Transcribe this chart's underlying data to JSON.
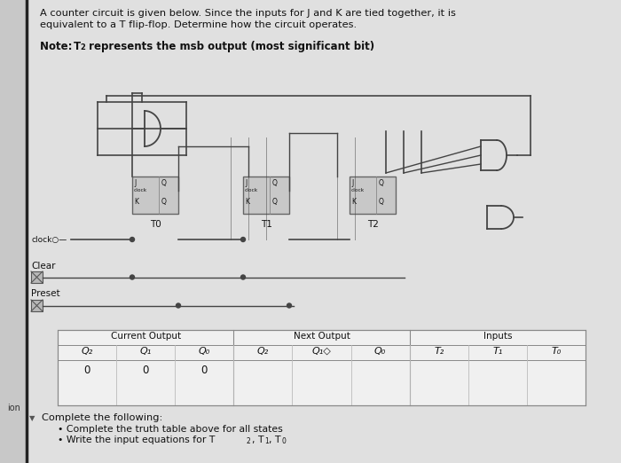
{
  "title_line1": "A counter circuit is given below. Since the inputs for J and K are tied together, it is",
  "title_line2": "equivalent to a T flip-flop. Determine how the circuit operates.",
  "note_bold": "Note: ",
  "note_t2": "T₂",
  "note_rest": " represents the msb output (most significant bit)",
  "ff_labels": [
    "T0",
    "T1",
    "T2"
  ],
  "bg_color": "#c8c8c8",
  "panel_color": "#e8e8e8",
  "white": "#ffffff",
  "black": "#000000",
  "wire_color": "#444444",
  "box_fill": "#d0d0d0",
  "ion_label": "ion",
  "table_section1": "Current Output",
  "table_section2": "Next Output",
  "table_section3": "Inputs",
  "col_headers": [
    "Q₂",
    "Q₁",
    "Q₀",
    "Q₂",
    "Q₁◇",
    "Q₀",
    "T₂",
    "T₁",
    "T₀"
  ],
  "data_row": [
    "0",
    "0",
    "0",
    "",
    "",
    "",
    "",
    "",
    ""
  ],
  "complete": "Complete the following:",
  "bullet1": "• Complete the truth table above for all states",
  "bullet2_pre": "• Write the input equations for T",
  "bullet2_subs": [
    "2",
    "1",
    "0"
  ]
}
